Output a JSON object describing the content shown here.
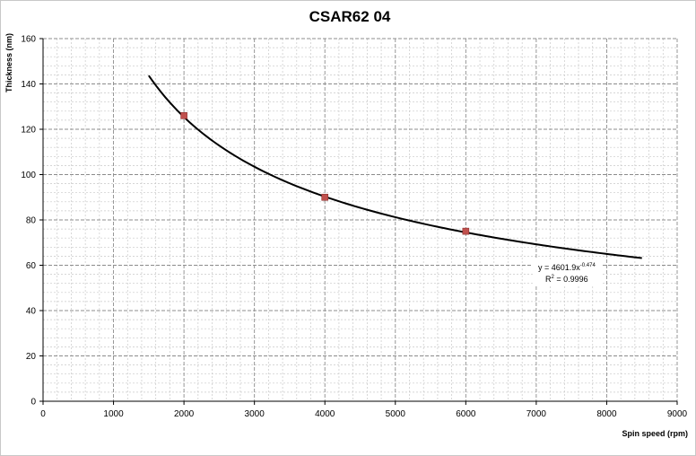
{
  "chart_data": {
    "type": "scatter",
    "title": "CSAR62 04",
    "xlabel": "Spin speed (rpm)",
    "ylabel": "Thickness (nm)",
    "xlim": [
      0,
      9000
    ],
    "ylim": [
      0,
      160
    ],
    "x_ticks": [
      0,
      1000,
      2000,
      3000,
      4000,
      5000,
      6000,
      7000,
      8000,
      9000
    ],
    "y_ticks": [
      0,
      20,
      40,
      60,
      80,
      100,
      120,
      140,
      160
    ],
    "grid": true,
    "series": [
      {
        "x": [
          2000,
          4000,
          6000
        ],
        "y": [
          126,
          90,
          75
        ],
        "marker": "square",
        "color": "#c0504d"
      }
    ],
    "trendline": {
      "type": "power",
      "a": 4601.9,
      "b": -0.474,
      "x_range": [
        1500,
        8500
      ],
      "color": "#000000",
      "equation_base": "y = 4601.9x",
      "equation_exponent": "-0.474",
      "r2_base": "R",
      "r2_exponent": "2",
      "r2_value": " = 0.9996"
    }
  }
}
